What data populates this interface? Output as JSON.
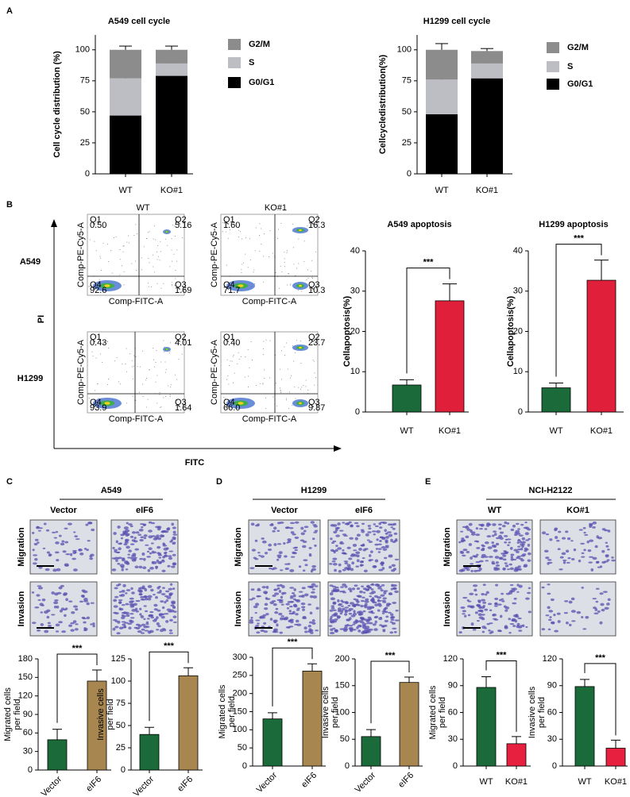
{
  "chart_data": [
    {
      "type": "stacked_bar",
      "title": "A549 cell cycle",
      "ylabel": [
        "Cell cycle distribution (%)"
      ],
      "categories": [
        "WT",
        "KO#1"
      ],
      "ylim": [
        0,
        112
      ],
      "yticks": [
        0,
        25,
        50,
        75,
        100
      ],
      "series": [
        {
          "name": "G0/G1",
          "color": "#000000",
          "values": [
            47,
            79
          ],
          "errors": [
            4,
            5
          ]
        },
        {
          "name": "S",
          "color": "#bdbdc4",
          "values": [
            30,
            10
          ],
          "errors": [
            2,
            2
          ]
        },
        {
          "name": "G2/M",
          "color": "#8c8c8c",
          "values": [
            23,
            11
          ],
          "errors": [
            3,
            3
          ]
        }
      ]
    },
    {
      "type": "stacked_bar",
      "title": "H1299 cell cycle",
      "ylabel": [
        "Cellcycledistribution(%)"
      ],
      "categories": [
        "WT",
        "KO#1"
      ],
      "ylim": [
        0,
        112
      ],
      "yticks": [
        0,
        25,
        50,
        75,
        100
      ],
      "series": [
        {
          "name": "G0/G1",
          "color": "#000000",
          "values": [
            48,
            77
          ],
          "errors": [
            6,
            3
          ]
        },
        {
          "name": "S",
          "color": "#bdbdc4",
          "values": [
            28,
            12
          ],
          "errors": [
            3,
            2
          ]
        },
        {
          "name": "G2/M",
          "color": "#8c8c8c",
          "values": [
            24,
            10
          ],
          "errors": [
            5,
            2
          ]
        }
      ]
    },
    {
      "type": "bar",
      "title": "A549 apoptosis",
      "ylabel": [
        "Cellapoptosis(%)"
      ],
      "categories": [
        "WT",
        "KO#1"
      ],
      "ylim": [
        0,
        40
      ],
      "yticks": [
        0,
        10,
        20,
        30,
        40
      ],
      "values": [
        6.7,
        27.6
      ],
      "errors": [
        1.3,
        4.2
      ],
      "colors": [
        "#1b6b3a",
        "#e0203a"
      ],
      "annotation": "***"
    },
    {
      "type": "bar",
      "title": "H1299 apoptosis",
      "ylabel": [
        "Cellapoptosis(%)"
      ],
      "categories": [
        "WT",
        "KO#1"
      ],
      "ylim": [
        0,
        40
      ],
      "yticks": [
        0,
        10,
        20,
        30,
        40
      ],
      "values": [
        6,
        32.7
      ],
      "errors": [
        1.2,
        5
      ],
      "colors": [
        "#1b6b3a",
        "#e0203a"
      ],
      "annotation": "***"
    },
    {
      "type": "bar",
      "ylabel": [
        "Migrated cells",
        "per field"
      ],
      "categories": [
        "Vector",
        "eIF6"
      ],
      "ylim": [
        0,
        180
      ],
      "yticks": [
        0,
        30,
        60,
        90,
        120,
        150,
        180
      ],
      "values": [
        49,
        144
      ],
      "errors": [
        17,
        18
      ],
      "colors": [
        "#1b6b3a",
        "#a8864f"
      ],
      "annotation": "***"
    },
    {
      "type": "bar",
      "ylabel": [
        "Invasive cells",
        "per field"
      ],
      "categories": [
        "Vector",
        "eIF6"
      ],
      "ylim": [
        0,
        125
      ],
      "yticks": [
        0,
        25,
        50,
        75,
        100,
        125
      ],
      "values": [
        40,
        106
      ],
      "errors": [
        8,
        9
      ],
      "colors": [
        "#1b6b3a",
        "#a8864f"
      ],
      "annotation": "***"
    },
    {
      "type": "bar",
      "ylabel": [
        "Migrated cells",
        "per field"
      ],
      "categories": [
        "Vector",
        "eIF6"
      ],
      "ylim": [
        0,
        300
      ],
      "yticks": [
        0,
        50,
        100,
        150,
        200,
        250,
        300
      ],
      "values": [
        130,
        262
      ],
      "errors": [
        17,
        20
      ],
      "colors": [
        "#1b6b3a",
        "#a8864f"
      ],
      "annotation": "***"
    },
    {
      "type": "bar",
      "ylabel": [
        "Invasive cells",
        "per field"
      ],
      "categories": [
        "Vector",
        "eIF6"
      ],
      "ylim": [
        0,
        200
      ],
      "yticks": [
        0,
        50,
        100,
        150,
        200
      ],
      "values": [
        55,
        156
      ],
      "errors": [
        13,
        10
      ],
      "colors": [
        "#1b6b3a",
        "#a8864f"
      ],
      "annotation": "***"
    },
    {
      "type": "bar",
      "ylabel": [
        "Migrated cells",
        "per field"
      ],
      "categories": [
        "WT",
        "KO#1"
      ],
      "ylim": [
        0,
        120
      ],
      "yticks": [
        0,
        30,
        60,
        90,
        120
      ],
      "values": [
        88,
        25
      ],
      "errors": [
        12,
        8
      ],
      "colors": [
        "#1b6b3a",
        "#e8203f"
      ],
      "annotation": "***"
    },
    {
      "type": "bar",
      "ylabel": [
        "Invasive cells",
        "per field"
      ],
      "categories": [
        "WT",
        "KO#1"
      ],
      "ylim": [
        0,
        120
      ],
      "yticks": [
        0,
        30,
        60,
        90,
        120
      ],
      "values": [
        89,
        20
      ],
      "errors": [
        8,
        9
      ],
      "colors": [
        "#1b6b3a",
        "#e8203f"
      ],
      "annotation": "***"
    }
  ],
  "figure": {
    "panel_labels": [
      "A",
      "B",
      "C",
      "D",
      "E"
    ],
    "flow": {
      "columns": [
        "WT",
        "KO#1"
      ],
      "rows": [
        "A549",
        "H1299"
      ],
      "y_axis": "PI",
      "x_axis": "FITC",
      "x_channel": "Comp-FITC-A",
      "y_channel": "Comp-PE-Cy5-A",
      "plots": [
        {
          "quadrants": [
            [
              "Q1",
              "0.50"
            ],
            [
              "Q2",
              "5.16"
            ],
            [
              "Q3",
              "1.69"
            ],
            [
              "Q4",
              "92.6"
            ]
          ]
        },
        {
          "quadrants": [
            [
              "Q1",
              "1.60"
            ],
            [
              "Q2",
              "16.3"
            ],
            [
              "Q3",
              "10.3"
            ],
            [
              "Q4",
              "71.7"
            ]
          ]
        },
        {
          "quadrants": [
            [
              "Q1",
              "0.43"
            ],
            [
              "Q2",
              "4.01"
            ],
            [
              "Q3",
              "1.64"
            ],
            [
              "Q4",
              "93.9"
            ]
          ]
        },
        {
          "quadrants": [
            [
              "Q1",
              "0.40"
            ],
            [
              "Q2",
              "23.7"
            ],
            [
              "Q3",
              "9.87"
            ],
            [
              "Q4",
              "66.0"
            ]
          ]
        }
      ]
    },
    "transwell": [
      {
        "title": "A549",
        "columns": [
          "Vector",
          "eIF6"
        ],
        "rows": [
          "Migration",
          "Invasion"
        ]
      },
      {
        "title": "H1299",
        "columns": [
          "Vector",
          "eIF6"
        ],
        "rows": [
          "Migration",
          "Invasion"
        ]
      },
      {
        "title": "NCI-H2122",
        "columns": [
          "WT",
          "KO#1"
        ],
        "rows": [
          "Migration",
          "Invasion"
        ]
      }
    ]
  }
}
